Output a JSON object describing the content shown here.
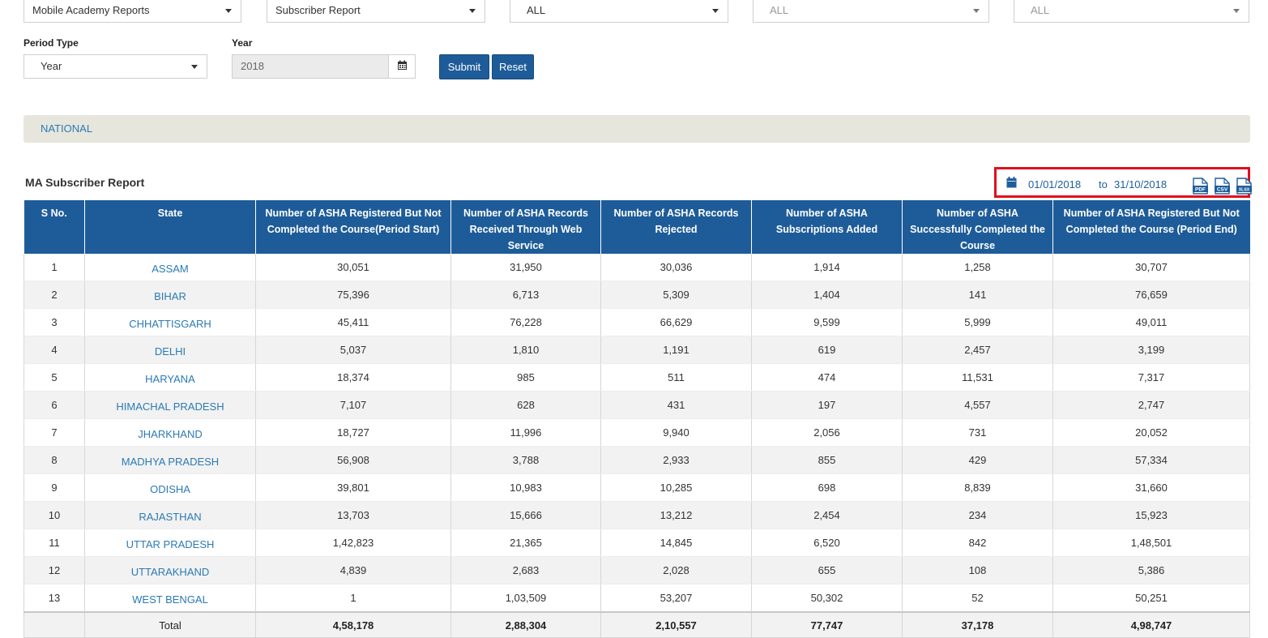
{
  "filters": {
    "report_category": "Mobile Academy Reports",
    "report_type": "Subscriber Report",
    "state": "ALL",
    "district": "ALL",
    "block": "ALL"
  },
  "period": {
    "period_type_label": "Period Type",
    "period_type_value": "Year",
    "year_label": "Year",
    "year_value": "2018"
  },
  "buttons": {
    "submit": "Submit",
    "reset": "Reset"
  },
  "breadcrumb": "NATIONAL",
  "report": {
    "title": "MA Subscriber Report",
    "date_from": "01/01/2018",
    "date_to_word": "to",
    "date_to": "31/10/2018",
    "exports": [
      "PDF",
      "CSV",
      "XLSX"
    ]
  },
  "table": {
    "headers": [
      "S No.",
      "State",
      "Number of ASHA Registered But Not Completed the Course(Period Start)",
      "Number of ASHA Records Received Through Web Service",
      "Number of ASHA Records Rejected",
      "Number of ASHA Subscriptions Added",
      "Number of ASHA Successfully Completed the Course",
      "Number of ASHA Registered But Not Completed the Course (Period End)"
    ],
    "rows": [
      [
        "1",
        "ASSAM",
        "30,051",
        "31,950",
        "30,036",
        "1,914",
        "1,258",
        "30,707"
      ],
      [
        "2",
        "BIHAR",
        "75,396",
        "6,713",
        "5,309",
        "1,404",
        "141",
        "76,659"
      ],
      [
        "3",
        "CHHATTISGARH",
        "45,411",
        "76,228",
        "66,629",
        "9,599",
        "5,999",
        "49,011"
      ],
      [
        "4",
        "DELHI",
        "5,037",
        "1,810",
        "1,191",
        "619",
        "2,457",
        "3,199"
      ],
      [
        "5",
        "HARYANA",
        "18,374",
        "985",
        "511",
        "474",
        "11,531",
        "7,317"
      ],
      [
        "6",
        "HIMACHAL PRADESH",
        "7,107",
        "628",
        "431",
        "197",
        "4,557",
        "2,747"
      ],
      [
        "7",
        "JHARKHAND",
        "18,727",
        "11,996",
        "9,940",
        "2,056",
        "731",
        "20,052"
      ],
      [
        "8",
        "MADHYA PRADESH",
        "56,908",
        "3,788",
        "2,933",
        "855",
        "429",
        "57,334"
      ],
      [
        "9",
        "ODISHA",
        "39,801",
        "10,983",
        "10,285",
        "698",
        "8,839",
        "31,660"
      ],
      [
        "10",
        "RAJASTHAN",
        "13,703",
        "15,666",
        "13,212",
        "2,454",
        "234",
        "15,923"
      ],
      [
        "11",
        "UTTAR PRADESH",
        "1,42,823",
        "21,365",
        "14,845",
        "6,520",
        "842",
        "1,48,501"
      ],
      [
        "12",
        "UTTARAKHAND",
        "4,839",
        "2,683",
        "2,028",
        "655",
        "108",
        "5,386"
      ],
      [
        "13",
        "WEST BENGAL",
        "1",
        "1,03,509",
        "53,207",
        "50,302",
        "52",
        "50,251"
      ]
    ],
    "total": [
      "",
      "Total",
      "4,58,178",
      "2,88,304",
      "2,10,557",
      "77,747",
      "37,178",
      "4,98,747"
    ]
  },
  "colors": {
    "header_bg": "#1e5c99",
    "link": "#2b7ab5",
    "highlight_border": "#e0101c",
    "breadcrumb_bg": "#e7e6dd"
  },
  "icons": {
    "calendar": "calendar-icon",
    "pdf": "pdf-file-icon",
    "csv": "csv-file-icon",
    "xlsx": "xlsx-file-icon"
  }
}
